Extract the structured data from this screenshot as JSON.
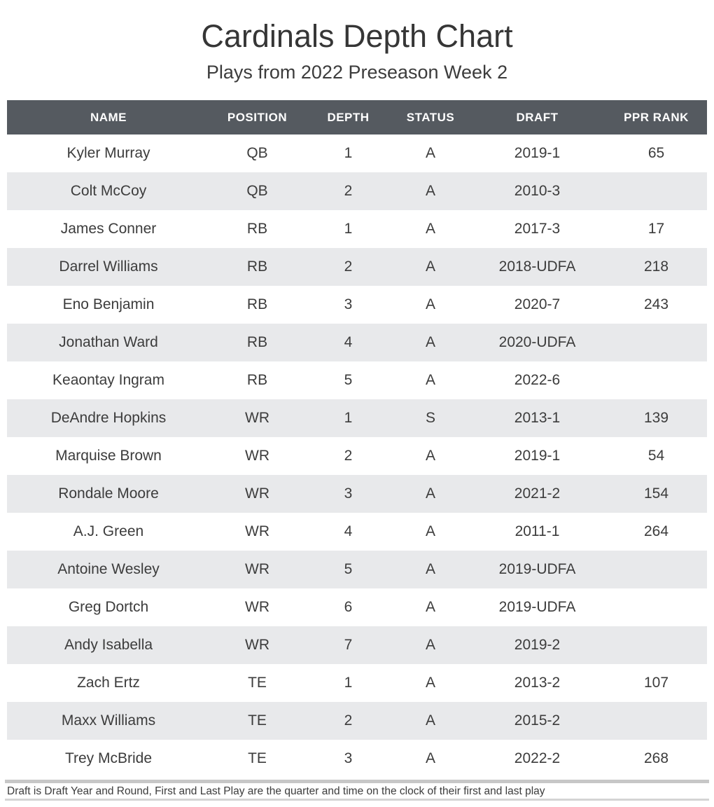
{
  "title": "Cardinals Depth Chart",
  "subtitle": "Plays from 2022 Preseason Week 2",
  "chart_data": {
    "type": "table",
    "columns": [
      "NAME",
      "POSITION",
      "DEPTH",
      "STATUS",
      "DRAFT",
      "PPR RANK"
    ],
    "rows": [
      [
        "Kyler Murray",
        "QB",
        "1",
        "A",
        "2019-1",
        "65"
      ],
      [
        "Colt McCoy",
        "QB",
        "2",
        "A",
        "2010-3",
        ""
      ],
      [
        "James Conner",
        "RB",
        "1",
        "A",
        "2017-3",
        "17"
      ],
      [
        "Darrel Williams",
        "RB",
        "2",
        "A",
        "2018-UDFA",
        "218"
      ],
      [
        "Eno Benjamin",
        "RB",
        "3",
        "A",
        "2020-7",
        "243"
      ],
      [
        "Jonathan Ward",
        "RB",
        "4",
        "A",
        "2020-UDFA",
        ""
      ],
      [
        "Keaontay Ingram",
        "RB",
        "5",
        "A",
        "2022-6",
        ""
      ],
      [
        "DeAndre Hopkins",
        "WR",
        "1",
        "S",
        "2013-1",
        "139"
      ],
      [
        "Marquise Brown",
        "WR",
        "2",
        "A",
        "2019-1",
        "54"
      ],
      [
        "Rondale Moore",
        "WR",
        "3",
        "A",
        "2021-2",
        "154"
      ],
      [
        "A.J. Green",
        "WR",
        "4",
        "A",
        "2011-1",
        "264"
      ],
      [
        "Antoine Wesley",
        "WR",
        "5",
        "A",
        "2019-UDFA",
        ""
      ],
      [
        "Greg Dortch",
        "WR",
        "6",
        "A",
        "2019-UDFA",
        ""
      ],
      [
        "Andy Isabella",
        "WR",
        "7",
        "A",
        "2019-2",
        ""
      ],
      [
        "Zach Ertz",
        "TE",
        "1",
        "A",
        "2013-2",
        "107"
      ],
      [
        "Maxx Williams",
        "TE",
        "2",
        "A",
        "2015-2",
        ""
      ],
      [
        "Trey McBride",
        "TE",
        "3",
        "A",
        "2022-2",
        "268"
      ]
    ]
  },
  "footer": "Draft is Draft Year and Round, First and Last Play are the quarter and time on the clock of their first and last play",
  "colors": {
    "header_bg": "#555a60",
    "header_text": "#ffffff",
    "row_alt_bg": "#e8e9eb",
    "body_text": "#3c3c3c",
    "line_top": "#c7c7c7",
    "line_bottom": "#d4d4d4"
  }
}
